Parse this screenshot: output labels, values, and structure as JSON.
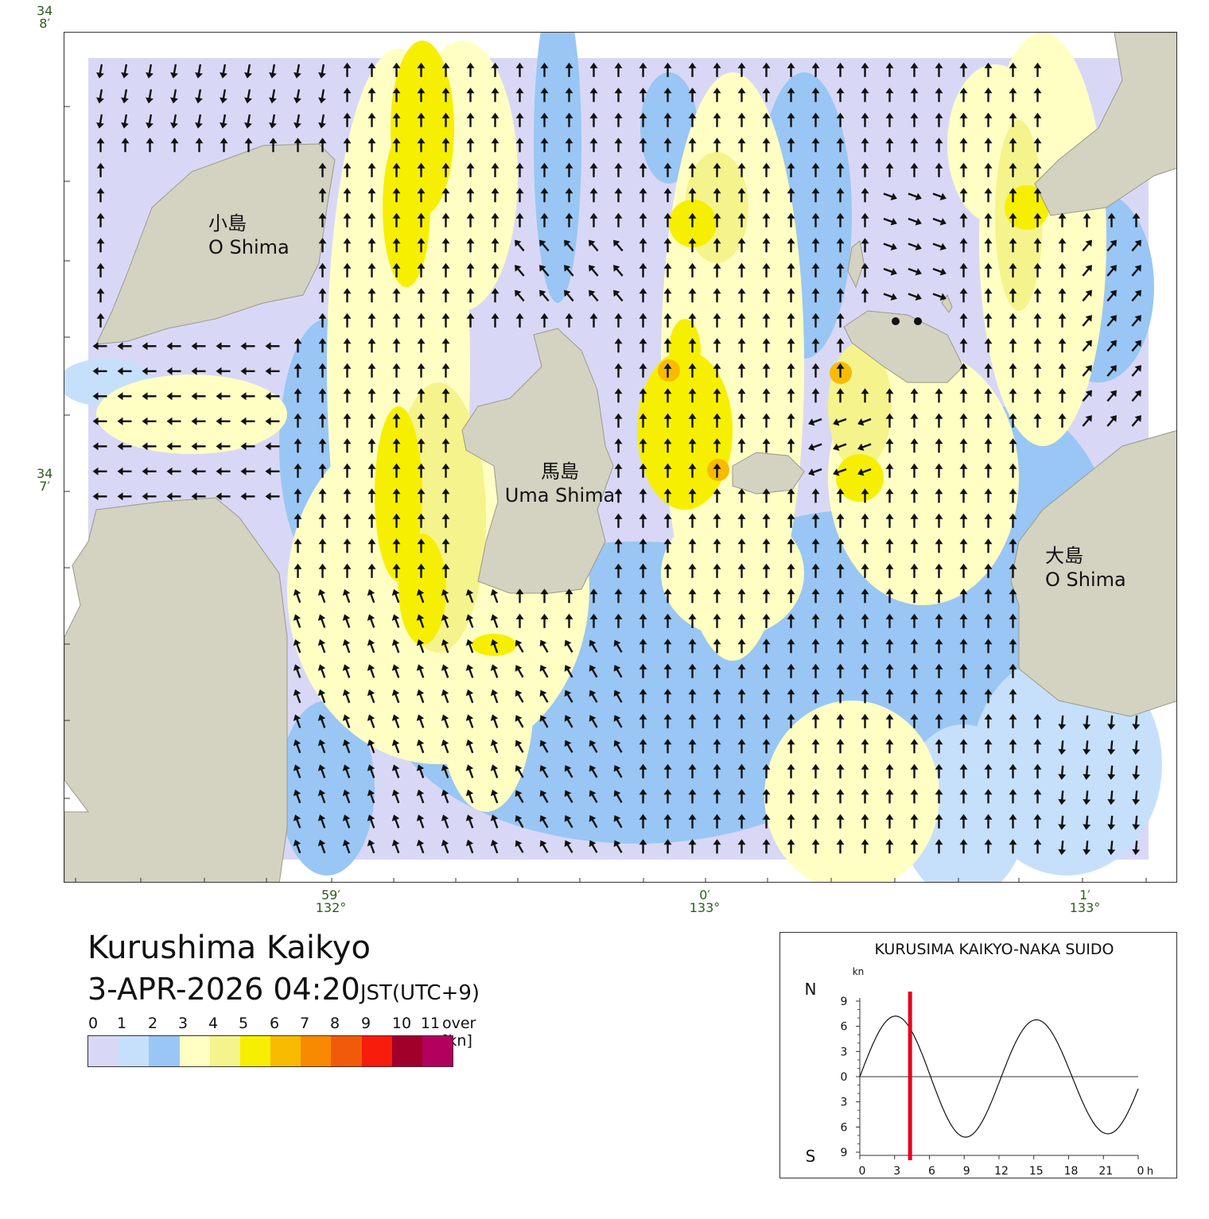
{
  "map": {
    "lat_labels": [
      {
        "deg": "34",
        "min": "8′"
      },
      {
        "deg": "34",
        "min": "7′"
      }
    ],
    "lon_labels": [
      {
        "min": "59′",
        "deg": "132°"
      },
      {
        "min": "0′",
        "deg": "133°"
      },
      {
        "min": "1′",
        "deg": "133°"
      }
    ],
    "islands": [
      {
        "ja": "小島",
        "en": "O Shima"
      },
      {
        "ja": "馬島",
        "en": "Uma Shima"
      },
      {
        "ja": "大島",
        "en": "O Shima"
      }
    ],
    "colors": {
      "land": "#d4d3c2",
      "land_edge": "#9a998a",
      "arrow": "#111111"
    }
  },
  "title": "Kurushima Kaikyo",
  "datetime": {
    "main": "3-APR-2026 04:20",
    "tz": "JST(UTC+9)"
  },
  "legend": {
    "labels": [
      "0",
      "1",
      "2",
      "3",
      "4",
      "5",
      "6",
      "7",
      "8",
      "9",
      "10",
      "11",
      "over [kn]"
    ],
    "colors": [
      "#d8d8f6",
      "#c6e0fb",
      "#99c6f4",
      "#ffffc4",
      "#f5f38c",
      "#f7ef00",
      "#f8bb00",
      "#f98900",
      "#f25a0b",
      "#f81c0c",
      "#a0002a",
      "#b3005f"
    ]
  },
  "tide_panel": {
    "title": "KURUSIMA KAIKYO-NAKA SUIDO",
    "unit": "kn",
    "north": "N",
    "south": "S",
    "y_ticks": [
      "9",
      "6",
      "3",
      "0",
      "3",
      "6",
      "9"
    ],
    "x_ticks": [
      "0",
      "3",
      "6",
      "9",
      "12",
      "15",
      "18",
      "21",
      "0"
    ],
    "x_unit": "h",
    "current_hour": 4.33,
    "marker_color": "#e8001c"
  }
}
